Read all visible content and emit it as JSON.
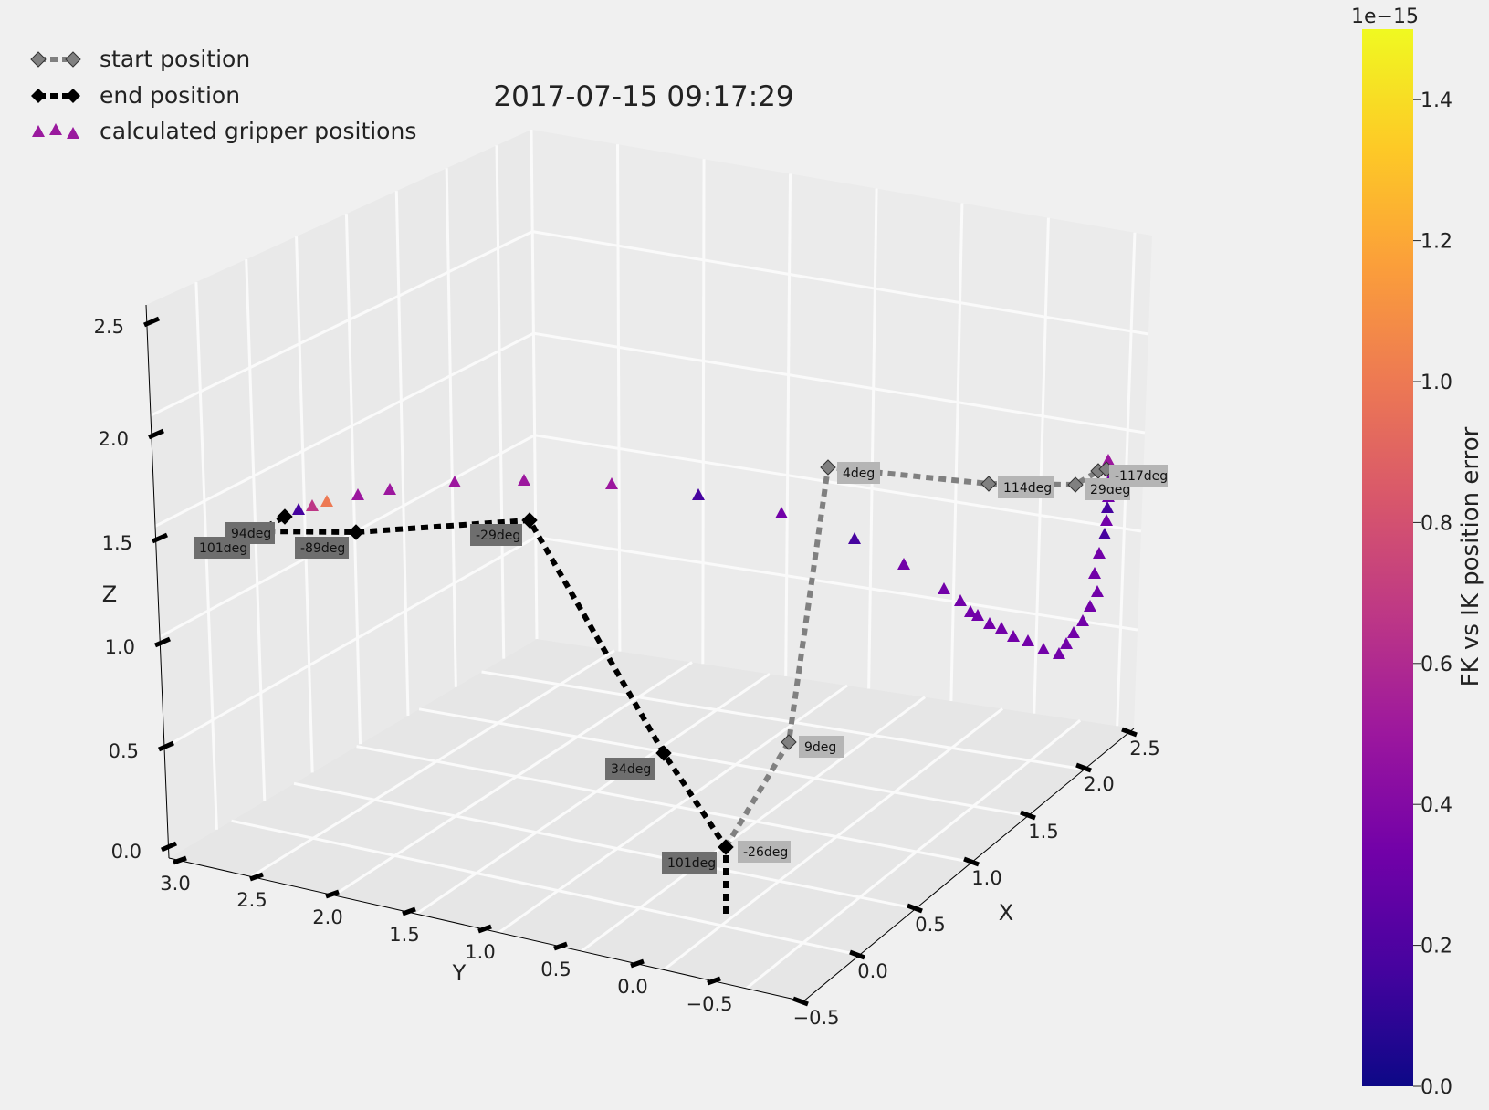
{
  "chart_data": {
    "type": "scatter",
    "projection": "3d",
    "title": "2017-07-15 09:17:29",
    "xlabel": "X",
    "ylabel": "Y",
    "zlabel": "Z",
    "xlim": [
      -0.5,
      2.5
    ],
    "ylim": [
      -0.5,
      3.0
    ],
    "zlim": [
      0.0,
      2.5
    ],
    "x_ticks": [
      "−0.5",
      "0.0",
      "0.5",
      "1.0",
      "1.5",
      "2.0",
      "2.5"
    ],
    "y_ticks": [
      "−0.5",
      "0.0",
      "0.5",
      "1.0",
      "1.5",
      "2.0",
      "2.5",
      "3.0"
    ],
    "z_ticks": [
      "0.0",
      "0.5",
      "1.0",
      "1.5",
      "2.0",
      "2.5"
    ],
    "grid": true,
    "legend_position": "top-left",
    "legend": [
      {
        "label": "start position",
        "marker": "diamond",
        "color": "#808080",
        "line": "dashed"
      },
      {
        "label": "end position",
        "marker": "diamond",
        "color": "#000000",
        "line": "dashed"
      },
      {
        "label": "calculated gripper positions",
        "marker": "triangle",
        "color": "#9a1a9e",
        "line": "none"
      }
    ],
    "start_position": {
      "name": "start position",
      "color": "#808080",
      "joint_labels": [
        "-26deg",
        "9deg",
        "4deg",
        "114deg",
        "29deg",
        "-117deg"
      ]
    },
    "end_position": {
      "name": "end position",
      "color": "#000000",
      "joint_labels": [
        "101deg",
        "34deg",
        "-29deg",
        "-89deg",
        "101deg",
        "94deg"
      ]
    },
    "gripper_positions": {
      "name": "calculated gripper positions",
      "error_values": [
        0.7,
        0.1,
        1.0,
        0.45,
        0.5,
        0.45,
        0.45,
        0.45,
        0.1,
        0.3,
        0.2,
        0.3,
        0.35,
        0.35,
        0.35,
        0.4,
        0.4,
        0.35,
        0.4,
        0.35,
        0.3,
        0.3,
        0.3,
        0.4,
        0.35,
        0.3,
        0.3,
        0.3,
        0.3,
        0.2,
        0.25,
        0.15,
        0.3,
        0.35,
        0.4,
        0.45,
        0.5,
        0.55
      ]
    },
    "colorbar": {
      "label": "FK vs IK position error",
      "multiplier": "1e−15",
      "min": 0.0,
      "max": 1.5,
      "ticks": [
        "0.0",
        "0.2",
        "0.4",
        "0.6",
        "0.8",
        "1.0",
        "1.2",
        "1.4"
      ],
      "colormap": "plasma",
      "colors": [
        "#0d0887",
        "#46039f",
        "#7201a8",
        "#9c179e",
        "#bd3786",
        "#d8576b",
        "#ed7953",
        "#fb9f3a",
        "#fdca26",
        "#f0f921"
      ]
    }
  }
}
